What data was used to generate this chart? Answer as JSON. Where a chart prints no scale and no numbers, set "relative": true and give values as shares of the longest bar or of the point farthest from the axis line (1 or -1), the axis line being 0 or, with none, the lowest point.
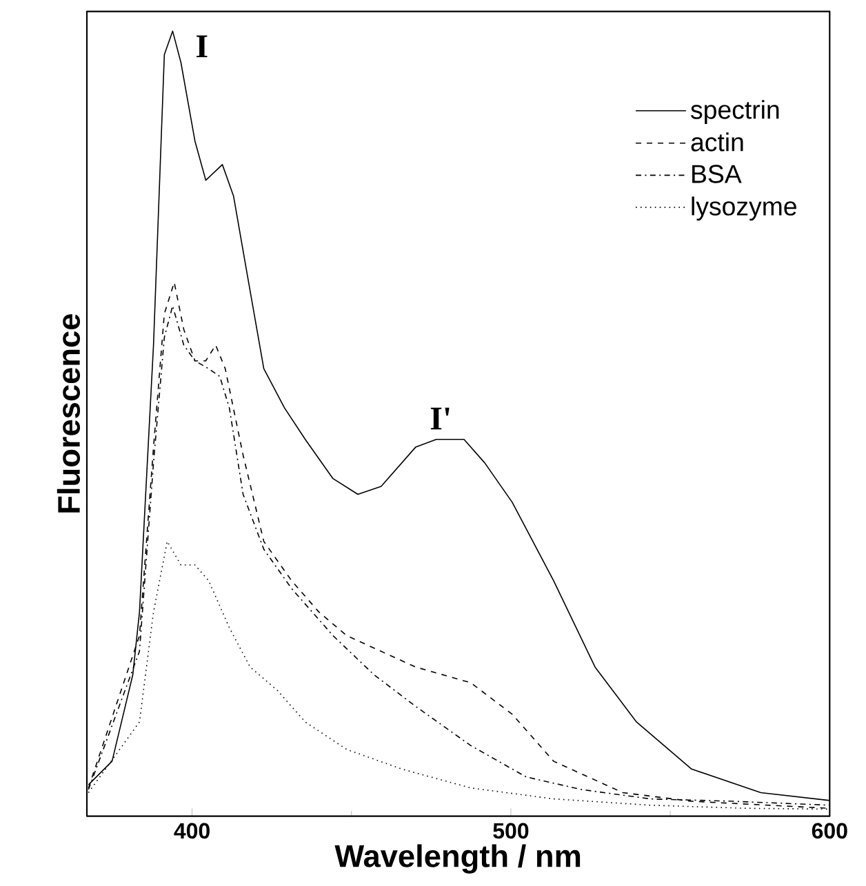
{
  "chart_data": {
    "type": "line",
    "relative": true,
    "xlabel": "Wavelength / nm",
    "ylabel": "Fluorescence",
    "xlim": [
      367,
      600
    ],
    "xticks": [
      400,
      500,
      600
    ],
    "legend": "top right",
    "grid": false,
    "series": [
      {
        "name": "spectrin",
        "color": "#000000",
        "line_style": "solid",
        "x": [
          367.5,
          374.9,
          381.4,
          383.5,
          387.9,
          391.3,
          393.9,
          396.5,
          400.9,
          404.3,
          409.5,
          413,
          417.3,
          422.5,
          429,
          435.5,
          444.2,
          452,
          459.3,
          470.1,
          476.6,
          485.3,
          491.8,
          500.4,
          513.4,
          526.4,
          539.4,
          556.7,
          578.4,
          600
        ],
        "values": [
          0.04,
          0.07,
          0.18,
          0.26,
          0.6,
          0.97,
          1.0,
          0.96,
          0.86,
          0.81,
          0.83,
          0.79,
          0.69,
          0.57,
          0.52,
          0.48,
          0.43,
          0.41,
          0.42,
          0.47,
          0.48,
          0.48,
          0.45,
          0.4,
          0.3,
          0.19,
          0.12,
          0.06,
          0.03,
          0.02
        ]
      },
      {
        "name": "actin",
        "color": "#000000",
        "line_style": "dashed",
        "x": [
          367.5,
          383.5,
          387.9,
          391.3,
          394.4,
          397.4,
          400.9,
          404.3,
          407.4,
          410.4,
          416,
          422.5,
          431.2,
          439.8,
          448.5,
          470.1,
          487.4,
          500.4,
          513.4,
          535.1,
          556.7,
          600
        ],
        "values": [
          0.036,
          0.23,
          0.47,
          0.64,
          0.68,
          0.62,
          0.58,
          0.58,
          0.6,
          0.57,
          0.46,
          0.35,
          0.3,
          0.26,
          0.23,
          0.19,
          0.17,
          0.13,
          0.07,
          0.03,
          0.019,
          0.01
        ]
      },
      {
        "name": "BSA",
        "color": "#000000",
        "line_style": "dashdot",
        "x": [
          367.5,
          383.5,
          387.9,
          391.3,
          393.9,
          397.4,
          400.9,
          405.2,
          408.7,
          411.7,
          416,
          422.5,
          431.2,
          444.2,
          457.1,
          470.1,
          487.4,
          504.8,
          522.1,
          543.7,
          569.7,
          600
        ],
        "values": [
          0.034,
          0.21,
          0.45,
          0.61,
          0.65,
          0.6,
          0.58,
          0.57,
          0.56,
          0.52,
          0.41,
          0.34,
          0.29,
          0.23,
          0.18,
          0.14,
          0.09,
          0.05,
          0.034,
          0.022,
          0.019,
          0.014
        ]
      },
      {
        "name": "lysozyme",
        "color": "#000000",
        "line_style": "dotted",
        "x": [
          367.5,
          383.5,
          387.9,
          392.2,
          396.5,
          400.9,
          405.2,
          411.7,
          418.2,
          426.8,
          435.5,
          448.5,
          465.8,
          487.4,
          513.4,
          543.7,
          574,
          600
        ],
        "values": [
          0.03,
          0.12,
          0.26,
          0.35,
          0.32,
          0.32,
          0.3,
          0.24,
          0.19,
          0.16,
          0.12,
          0.085,
          0.06,
          0.036,
          0.022,
          0.014,
          0.01,
          0.009
        ]
      }
    ],
    "annotations": [
      {
        "text": "I",
        "x": 393.9,
        "y": 1.0
      },
      {
        "text": "I'",
        "x": 478,
        "y": 0.48
      }
    ]
  }
}
